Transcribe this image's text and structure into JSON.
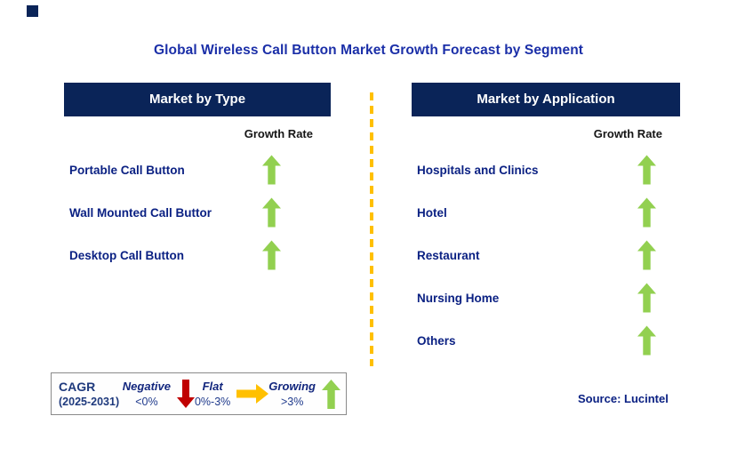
{
  "title": "Global Wireless Call Button Market Growth Forecast by Segment",
  "panels": {
    "type": {
      "header": "Market by Type",
      "growth_rate_label": "Growth Rate",
      "items": [
        {
          "label": "Portable Call Button",
          "trend": "growing"
        },
        {
          "label": "Wall Mounted Call Buttor",
          "trend": "growing"
        },
        {
          "label": "Desktop Call Button",
          "trend": "growing"
        }
      ]
    },
    "application": {
      "header": "Market by Application",
      "growth_rate_label": "Growth Rate",
      "items": [
        {
          "label": "Hospitals and Clinics",
          "trend": "growing"
        },
        {
          "label": "Hotel",
          "trend": "growing"
        },
        {
          "label": "Restaurant",
          "trend": "growing"
        },
        {
          "label": "Nursing Home",
          "trend": "growing"
        },
        {
          "label": "Others",
          "trend": "growing"
        }
      ]
    }
  },
  "legend": {
    "cagr_label": "CAGR",
    "period": "(2025-2031)",
    "entries": [
      {
        "label": "Negative",
        "range": "<0%",
        "arrow": "down-arrow",
        "color": "#c00000"
      },
      {
        "label": "Flat",
        "range": "0%-3%",
        "arrow": "right-arrow",
        "color": "#ffc000"
      },
      {
        "label": "Growing",
        "range": ">3%",
        "arrow": "up-arrow",
        "color": "#92d050"
      }
    ]
  },
  "source": "Source: Lucintel",
  "colors": {
    "header_bg": "#0a2458",
    "title_text": "#1b2fa8",
    "item_text": "#0b2183",
    "growth_green": "#92d050",
    "negative_red": "#c00000",
    "flat_gold": "#ffc000",
    "divider_gold": "#ffc000"
  }
}
